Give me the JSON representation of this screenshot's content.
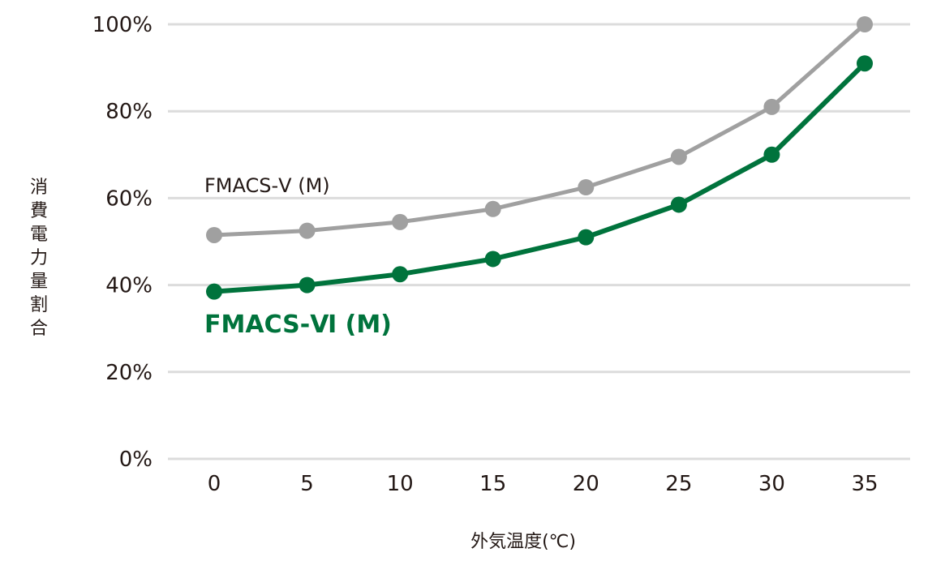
{
  "chart_data": {
    "type": "line",
    "x": [
      0,
      5,
      10,
      15,
      20,
      25,
      30,
      35
    ],
    "xlabel": "外気温度(℃)",
    "ylabel": "消費電力量割合",
    "ylim": [
      0,
      100
    ],
    "yticks": [
      "0%",
      "20%",
      "40%",
      "60%",
      "80%",
      "100%"
    ],
    "xticks": [
      "0",
      "5",
      "10",
      "15",
      "20",
      "25",
      "30",
      "35"
    ],
    "grid": true,
    "legend": "inline labels",
    "series": [
      {
        "name": "FMACS-Ⅴ (M)",
        "values": [
          51.5,
          52.5,
          54.5,
          57.5,
          62.5,
          69.5,
          81,
          100
        ],
        "color": "#a0a0a0"
      },
      {
        "name": "FMACS-Ⅵ (M)",
        "values": [
          38.5,
          40,
          42.5,
          46,
          51,
          58.5,
          70,
          91
        ],
        "color": "#00733c"
      }
    ]
  }
}
